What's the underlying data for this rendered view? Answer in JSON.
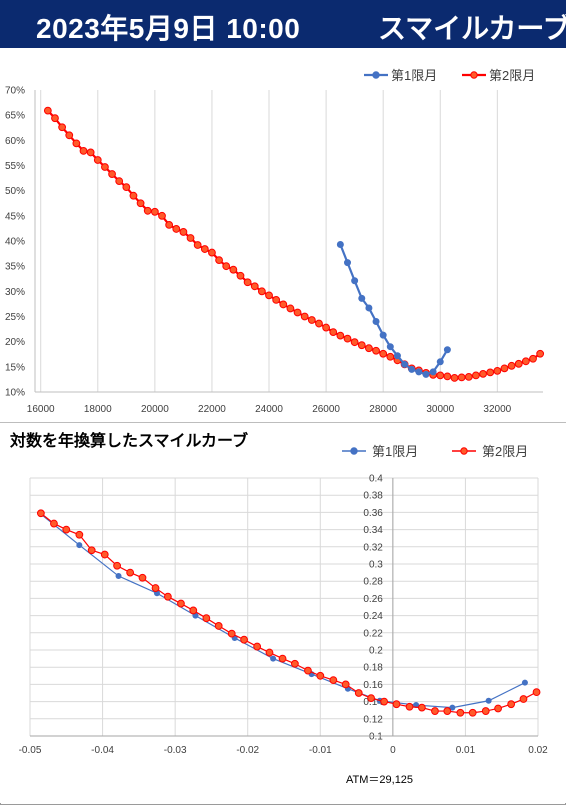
{
  "header": {
    "datetime": "2023年5月9日 10:00",
    "title": "スマイルカーブ"
  },
  "colors": {
    "header_bg": "#0b2a6f",
    "series1": "#4472c4",
    "series2": "#ff0000",
    "series2_fill": "#ff5a2a"
  },
  "chart_data": [
    {
      "type": "line",
      "title": "",
      "xlabel": "",
      "ylabel": "",
      "xlim": [
        15800,
        33600
      ],
      "ylim": [
        0.1,
        0.7
      ],
      "y_format": "percent",
      "x_ticks": [
        "16000",
        "18000",
        "20000",
        "22000",
        "24000",
        "26000",
        "28000",
        "30000",
        "32000"
      ],
      "y_ticks": [
        "10%",
        "15%",
        "20%",
        "25%",
        "30%",
        "35%",
        "40%",
        "45%",
        "50%",
        "55%",
        "60%",
        "65%",
        "70%"
      ],
      "grid": "vertical",
      "legend": "top-right",
      "series": [
        {
          "name": "第1限月",
          "x": [
            26500,
            26750,
            27000,
            27250,
            27500,
            27750,
            28000,
            28250,
            28500,
            28750,
            29000,
            29250,
            29500,
            29750,
            30000,
            30250
          ],
          "y": [
            0.393,
            0.357,
            0.321,
            0.286,
            0.267,
            0.24,
            0.213,
            0.19,
            0.172,
            0.155,
            0.145,
            0.14,
            0.135,
            0.14,
            0.16,
            0.184
          ]
        },
        {
          "name": "第2限月",
          "x": [
            16250,
            16500,
            16750,
            17000,
            17250,
            17500,
            17750,
            18000,
            18250,
            18500,
            18750,
            19000,
            19250,
            19500,
            19750,
            20000,
            20250,
            20500,
            20750,
            21000,
            21250,
            21500,
            21750,
            22000,
            22250,
            22500,
            22750,
            23000,
            23250,
            23500,
            23750,
            24000,
            24250,
            24500,
            24750,
            25000,
            25250,
            25500,
            25750,
            26000,
            26250,
            26500,
            26750,
            27000,
            27250,
            27500,
            27750,
            28000,
            28250,
            28500,
            28750,
            29000,
            29250,
            29500,
            29750,
            30000,
            30250,
            30500,
            30750,
            31000,
            31250,
            31500,
            31750,
            32000,
            32250,
            32500,
            32750,
            33000,
            33250,
            33500
          ],
          "y": [
            0.659,
            0.644,
            0.626,
            0.61,
            0.594,
            0.579,
            0.576,
            0.561,
            0.547,
            0.533,
            0.519,
            0.507,
            0.49,
            0.475,
            0.46,
            0.458,
            0.45,
            0.432,
            0.424,
            0.418,
            0.406,
            0.392,
            0.384,
            0.377,
            0.362,
            0.35,
            0.343,
            0.331,
            0.318,
            0.31,
            0.3,
            0.292,
            0.283,
            0.274,
            0.266,
            0.258,
            0.25,
            0.243,
            0.236,
            0.228,
            0.219,
            0.212,
            0.206,
            0.199,
            0.193,
            0.187,
            0.182,
            0.176,
            0.17,
            0.163,
            0.155,
            0.147,
            0.143,
            0.138,
            0.134,
            0.133,
            0.131,
            0.128,
            0.129,
            0.13,
            0.133,
            0.136,
            0.139,
            0.142,
            0.147,
            0.152,
            0.156,
            0.161,
            0.166,
            0.176
          ]
        }
      ]
    },
    {
      "type": "line",
      "title": "対数を年換算したスマイルカーブ",
      "xlabel": "",
      "ylabel": "",
      "xlim": [
        -0.05,
        0.02
      ],
      "ylim": [
        0.1,
        0.4
      ],
      "x_ticks": [
        "-0.05",
        "-0.04",
        "-0.03",
        "-0.02",
        "-0.01",
        "0",
        "0.01",
        "0.02"
      ],
      "y_ticks": [
        "0.1",
        "0.12",
        "0.14",
        "0.16",
        "0.18",
        "0.2",
        "0.22",
        "0.24",
        "0.26",
        "0.28",
        "0.3",
        "0.32",
        "0.34",
        "0.36",
        "0.38",
        "0.4"
      ],
      "grid": "both",
      "legend": "top-right",
      "annotation": "ATM＝29,125",
      "series": [
        {
          "name": "第1限月",
          "x": [
            -0.0485,
            -0.0432,
            -0.0378,
            -0.0325,
            -0.0272,
            -0.0218,
            -0.0165,
            -0.0112,
            -0.0062,
            -0.0018,
            0.0032,
            0.0082,
            0.0132,
            0.0182
          ],
          "y": [
            0.358,
            0.322,
            0.286,
            0.266,
            0.24,
            0.214,
            0.19,
            0.172,
            0.155,
            0.141,
            0.136,
            0.133,
            0.141,
            0.162
          ]
        },
        {
          "name": "第2限月",
          "x": [
            -0.0485,
            -0.0467,
            -0.045,
            -0.0432,
            -0.0415,
            -0.0397,
            -0.038,
            -0.0362,
            -0.0345,
            -0.0327,
            -0.031,
            -0.0292,
            -0.0275,
            -0.0257,
            -0.024,
            -0.0222,
            -0.0205,
            -0.0187,
            -0.017,
            -0.0152,
            -0.0135,
            -0.0117,
            -0.01,
            -0.0082,
            -0.0065,
            -0.0047,
            -0.003,
            -0.0012,
            0.0005,
            0.0023,
            0.004,
            0.0058,
            0.0075,
            0.0093,
            0.011,
            0.0128,
            0.0145,
            0.0163,
            0.018,
            0.0198
          ],
          "y": [
            0.359,
            0.347,
            0.34,
            0.334,
            0.316,
            0.311,
            0.298,
            0.29,
            0.284,
            0.272,
            0.262,
            0.254,
            0.246,
            0.237,
            0.228,
            0.219,
            0.212,
            0.204,
            0.197,
            0.19,
            0.184,
            0.176,
            0.17,
            0.165,
            0.16,
            0.15,
            0.144,
            0.14,
            0.137,
            0.134,
            0.133,
            0.129,
            0.129,
            0.127,
            0.127,
            0.129,
            0.132,
            0.137,
            0.143,
            0.151
          ]
        }
      ]
    }
  ]
}
